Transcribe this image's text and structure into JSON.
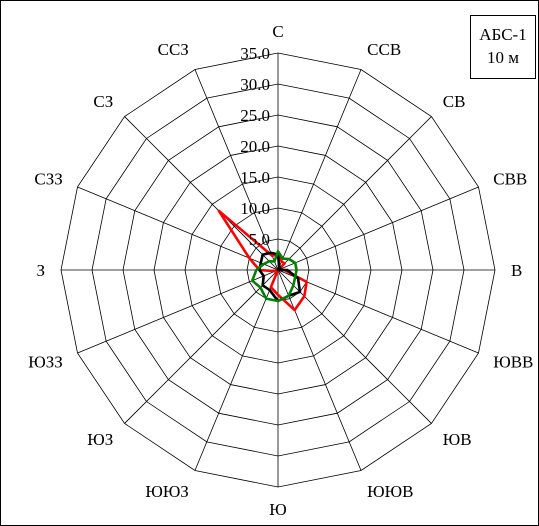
{
  "chart_data": {
    "type": "radar",
    "directions": [
      "С",
      "ССВ",
      "СВ",
      "СВВ",
      "В",
      "ЮВВ",
      "ЮВ",
      "ЮЮВ",
      "Ю",
      "ЮЮЗ",
      "ЮЗ",
      "ЮЗЗ",
      "З",
      "СЗЗ",
      "СЗ",
      "ССЗ"
    ],
    "radial_ticks": [
      "5.0",
      "10.0",
      "15.0",
      "20.0",
      "25.0",
      "30.0",
      "35.0"
    ],
    "radial_range": [
      0,
      35
    ],
    "grid": true,
    "series": [
      {
        "color": "#ff0000",
        "values": [
          2.5,
          1.5,
          1.5,
          0.0,
          1.0,
          5.0,
          6.0,
          7.0,
          4.0,
          3.0,
          0.0,
          0.5,
          3.0,
          5.0,
          13.5,
          2.5
        ]
      },
      {
        "color": "#000000",
        "values": [
          2.5,
          0.5,
          0.5,
          0.0,
          1.5,
          3.5,
          5.0,
          4.5,
          5.0,
          3.5,
          3.5,
          2.5,
          3.0,
          3.0,
          3.5,
          3.0
        ]
      },
      {
        "color": "#008000",
        "values": [
          3.0,
          2.0,
          2.5,
          3.0,
          3.0,
          3.0,
          3.5,
          4.5,
          5.0,
          5.0,
          4.0,
          4.5,
          3.5,
          2.5,
          2.0,
          1.5
        ]
      }
    ]
  },
  "legend": {
    "line1": "АБС-1",
    "line2": "10 м"
  }
}
